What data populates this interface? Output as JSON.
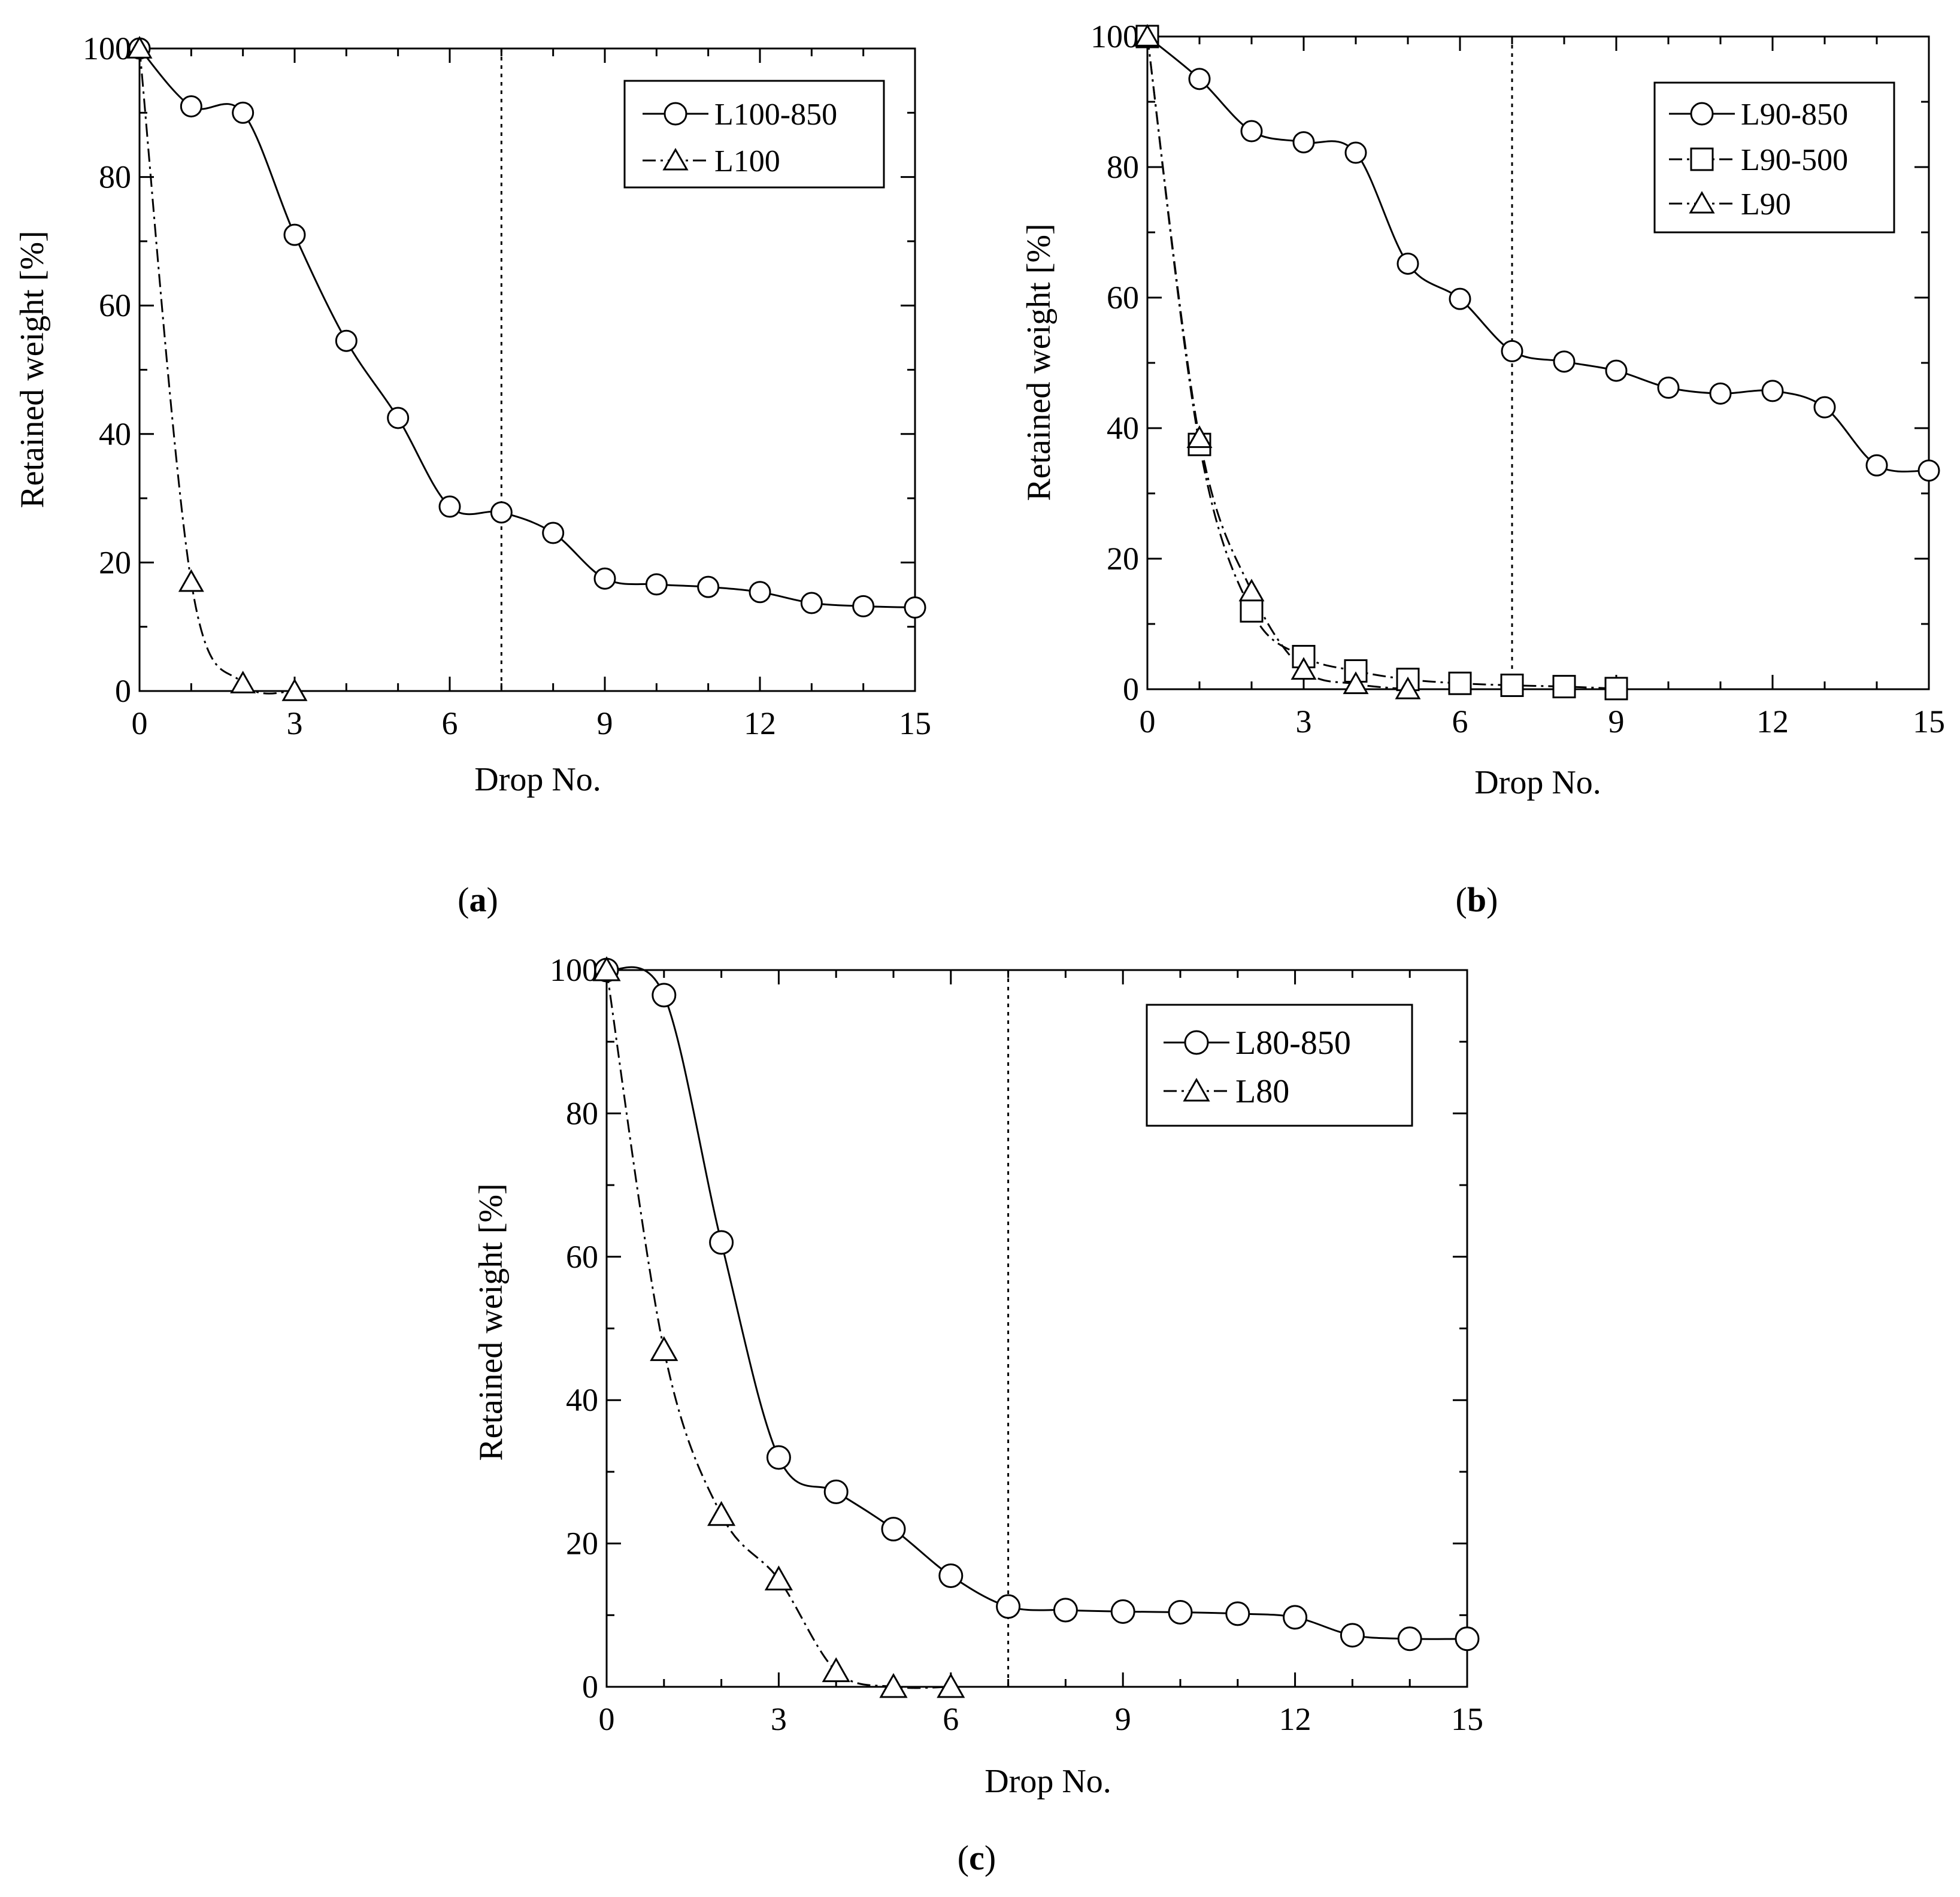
{
  "figure": {
    "captions": [
      {
        "open": "(",
        "letter": "a",
        "close": ")"
      },
      {
        "open": "(",
        "letter": "b",
        "close": ")"
      },
      {
        "open": "(",
        "letter": "c",
        "close": ")"
      }
    ]
  },
  "chart_data": [
    {
      "type": "line",
      "panel": "a",
      "xlabel": "Drop No.",
      "ylabel": "Retained weight [%]",
      "xlim": [
        0,
        15
      ],
      "ylim": [
        0,
        100
      ],
      "xticks": [
        0,
        3,
        6,
        9,
        12,
        15
      ],
      "yticks": [
        0,
        20,
        40,
        60,
        80,
        100
      ],
      "xtick_labels": [
        "0",
        "3",
        "6",
        "9",
        "12",
        "15"
      ],
      "ytick_labels": [
        "0",
        "20",
        "40",
        "60",
        "80",
        "100"
      ],
      "vline": 7,
      "legend_position": "top-right",
      "series": [
        {
          "name": "L100-850",
          "marker": "circle",
          "line": "solid",
          "x": [
            0,
            1,
            2,
            3,
            4,
            5,
            6,
            7,
            8,
            9,
            10,
            11,
            12,
            13,
            14,
            15
          ],
          "y": [
            100,
            91,
            90,
            71,
            54.5,
            42.5,
            28.7,
            27.8,
            24.6,
            17.5,
            16.6,
            16.2,
            15.4,
            13.7,
            13.2,
            13
          ]
        },
        {
          "name": "L100",
          "marker": "triangle",
          "line": "dashed",
          "x": [
            0,
            1,
            2,
            3
          ],
          "y": [
            100,
            17,
            1.2,
            0
          ]
        }
      ]
    },
    {
      "type": "line",
      "panel": "b",
      "xlabel": "Drop No.",
      "ylabel": "Retained weight [%]",
      "xlim": [
        0,
        15
      ],
      "ylim": [
        0,
        100
      ],
      "xticks": [
        0,
        3,
        6,
        9,
        12,
        15
      ],
      "yticks": [
        0,
        20,
        40,
        60,
        80,
        100
      ],
      "xtick_labels": [
        "0",
        "3",
        "6",
        "9",
        "12",
        "15"
      ],
      "ytick_labels": [
        "0",
        "20",
        "40",
        "60",
        "80",
        "100"
      ],
      "vline": 7,
      "legend_position": "top-right",
      "series": [
        {
          "name": "L90-850",
          "marker": "circle",
          "line": "solid",
          "x": [
            0,
            1,
            2,
            3,
            4,
            5,
            6,
            7,
            8,
            9,
            10,
            11,
            12,
            13,
            14,
            15
          ],
          "y": [
            100,
            93.5,
            85.5,
            83.8,
            82.2,
            65.2,
            59.8,
            51.8,
            50.2,
            48.8,
            46.2,
            45.3,
            45.7,
            43.2,
            34.3,
            33.5
          ]
        },
        {
          "name": "L90-500",
          "marker": "square",
          "line": "dashed",
          "x": [
            0,
            1,
            2,
            3,
            4,
            5,
            6,
            7,
            8,
            9
          ],
          "y": [
            100,
            37.5,
            12,
            5,
            2.8,
            1.5,
            0.9,
            0.6,
            0.4,
            0.1
          ]
        },
        {
          "name": "L90",
          "marker": "triangle",
          "line": "dashed",
          "x": [
            0,
            1,
            2,
            3,
            4,
            5
          ],
          "y": [
            100,
            38.5,
            15,
            3,
            0.8,
            0
          ]
        }
      ]
    },
    {
      "type": "line",
      "panel": "c",
      "xlabel": "Drop No.",
      "ylabel": "Retained weight [%]",
      "xlim": [
        0,
        15
      ],
      "ylim": [
        0,
        100
      ],
      "xticks": [
        0,
        3,
        6,
        9,
        12,
        15
      ],
      "yticks": [
        0,
        20,
        40,
        60,
        80,
        100
      ],
      "xtick_labels": [
        "0",
        "3",
        "6",
        "9",
        "12",
        "15"
      ],
      "ytick_labels": [
        "0",
        "20",
        "40",
        "60",
        "80",
        "100"
      ],
      "vline": 7,
      "legend_position": "top-right",
      "series": [
        {
          "name": "L80-850",
          "marker": "circle",
          "line": "solid",
          "x": [
            0,
            1,
            2,
            3,
            4,
            5,
            6,
            7,
            8,
            9,
            10,
            11,
            12,
            13,
            14,
            15
          ],
          "y": [
            100,
            96.5,
            62,
            32,
            27.2,
            22,
            15.5,
            11.2,
            10.7,
            10.5,
            10.4,
            10.2,
            9.7,
            7.2,
            6.7,
            6.7
          ]
        },
        {
          "name": "L80",
          "marker": "triangle",
          "line": "dashed",
          "x": [
            0,
            1,
            2,
            3,
            4,
            5,
            6
          ],
          "y": [
            100,
            47,
            24,
            15,
            2.2,
            0,
            0
          ]
        }
      ]
    }
  ]
}
